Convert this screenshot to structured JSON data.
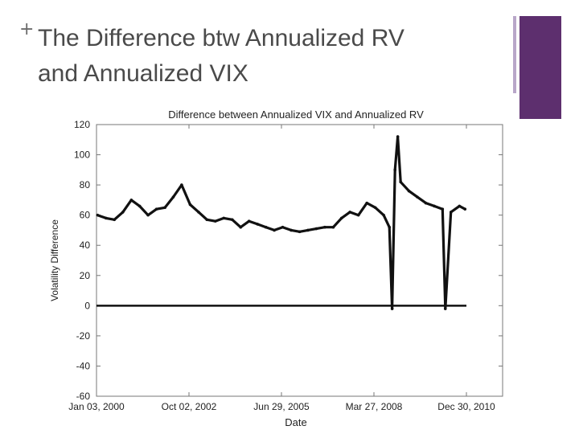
{
  "slide": {
    "bullet": "+",
    "title_line1": "The Difference btw Annualized RV",
    "title_line2": "and Annualized VIX",
    "accent_color": "#5d2f6e",
    "accent_light": "#b9a7c9"
  },
  "chart_data": {
    "type": "line",
    "title": "Difference between Annualized VIX and Annualized RV",
    "xlabel": "Date",
    "ylabel": "Volatility Difference",
    "ylim": [
      -60,
      120
    ],
    "yticks": [
      120,
      100,
      80,
      60,
      40,
      20,
      0,
      -20,
      -40,
      -60
    ],
    "xticks": [
      "Jan 03, 2000",
      "Oct 02, 2002",
      "Jun 29, 2005",
      "Mar 27, 2008",
      "Dec 30, 2010"
    ],
    "grid": false,
    "reference_line": 0,
    "series": [
      {
        "x": [
          "2000-01",
          "2000-04",
          "2000-07",
          "2000-10",
          "2001-01",
          "2001-04",
          "2001-07",
          "2001-10",
          "2002-01",
          "2002-04",
          "2002-07",
          "2002-10",
          "2003-01",
          "2003-04",
          "2003-07",
          "2003-10",
          "2004-01",
          "2004-04",
          "2004-07",
          "2004-10",
          "2005-01",
          "2005-04",
          "2005-07",
          "2005-10",
          "2006-01",
          "2006-04",
          "2006-07",
          "2006-10",
          "2007-01",
          "2007-04",
          "2007-07",
          "2007-10",
          "2008-01",
          "2008-04",
          "2008-07",
          "2008-09",
          "2008-10",
          "2008-11",
          "2008-12",
          "2009-01",
          "2009-04",
          "2009-07",
          "2009-10",
          "2010-01",
          "2010-04",
          "2010-05",
          "2010-07",
          "2010-10",
          "2010-12"
        ],
        "values": [
          60,
          58,
          57,
          62,
          70,
          66,
          60,
          64,
          65,
          72,
          80,
          67,
          62,
          57,
          56,
          58,
          57,
          52,
          56,
          54,
          52,
          50,
          52,
          50,
          49,
          50,
          51,
          52,
          52,
          58,
          62,
          60,
          68,
          65,
          60,
          52,
          -2,
          90,
          112,
          82,
          76,
          72,
          68,
          66,
          64,
          -2,
          62,
          66,
          64
        ],
        "color": "#111111"
      }
    ]
  }
}
